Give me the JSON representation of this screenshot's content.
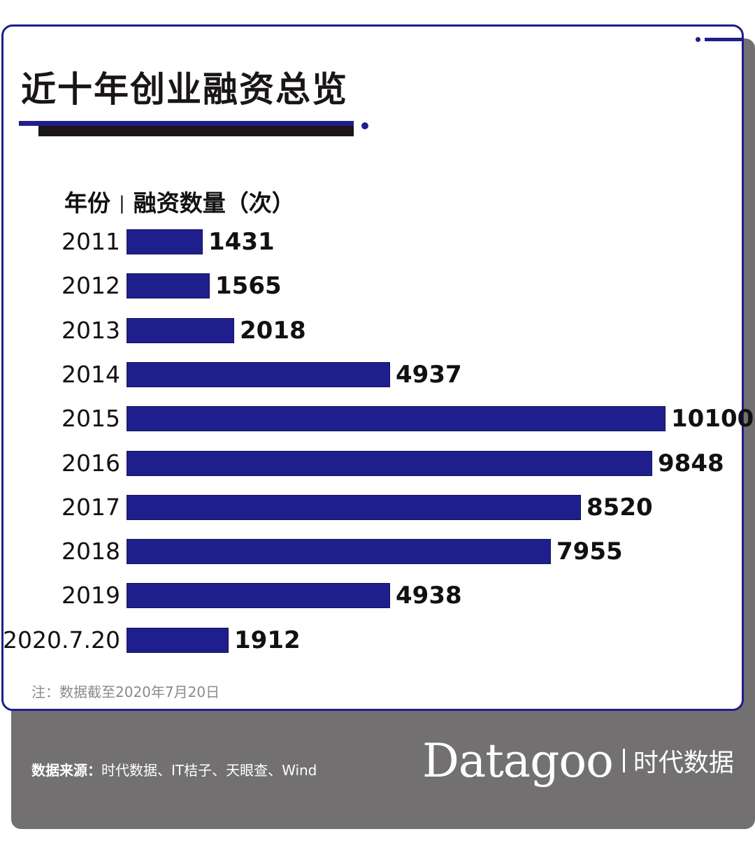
{
  "title": "近十年创业融资总览",
  "header": {
    "col1": "年份",
    "separator": "|",
    "col2": "融资数量（次）"
  },
  "note": "注：数据截至2020年7月20日",
  "footer": {
    "source_label": "数据来源：",
    "source_text": "时代数据、IT桔子、天眼查、Wind",
    "brand_logo": "Datagoo",
    "brand_cn": "时代数据"
  },
  "colors": {
    "bar": "#1e1e8c",
    "border": "#1e1e8c",
    "panel": "#727071",
    "title_text": "#1a1616"
  },
  "rows": [
    {
      "year": "2011",
      "value": "1431"
    },
    {
      "year": "2012",
      "value": "1565"
    },
    {
      "year": "2013",
      "value": "2018"
    },
    {
      "year": "2014",
      "value": "4937"
    },
    {
      "year": "2015",
      "value": "10100"
    },
    {
      "year": "2016",
      "value": "9848"
    },
    {
      "year": "2017",
      "value": "8520"
    },
    {
      "year": "2018",
      "value": "7955"
    },
    {
      "year": "2019",
      "value": "4938"
    },
    {
      "year": "2020.7.20",
      "value": "1912"
    }
  ],
  "chart_data": {
    "type": "bar",
    "orientation": "horizontal",
    "title": "近十年创业融资总览",
    "xlabel": "融资数量（次）",
    "ylabel": "年份",
    "categories": [
      "2011",
      "2012",
      "2013",
      "2014",
      "2015",
      "2016",
      "2017",
      "2018",
      "2019",
      "2020.7.20"
    ],
    "values": [
      1431,
      1565,
      2018,
      4937,
      10100,
      9848,
      8520,
      7955,
      4938,
      1912
    ],
    "data_labels": true,
    "grid": false,
    "legend": null,
    "annotations": [
      "注：数据截至2020年7月20日"
    ],
    "source": "时代数据、IT桔子、天眼查、Wind"
  }
}
